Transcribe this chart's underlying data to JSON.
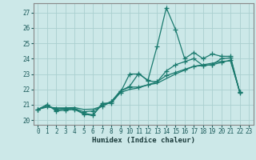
{
  "title": "",
  "xlabel": "Humidex (Indice chaleur)",
  "xlim": [
    -0.5,
    23.5
  ],
  "ylim": [
    19.7,
    27.6
  ],
  "yticks": [
    20,
    21,
    22,
    23,
    24,
    25,
    26,
    27
  ],
  "xticks": [
    0,
    1,
    2,
    3,
    4,
    5,
    6,
    7,
    8,
    9,
    10,
    11,
    12,
    13,
    14,
    15,
    16,
    17,
    18,
    19,
    20,
    21,
    22,
    23
  ],
  "bg_color": "#cce8e8",
  "grid_color": "#aad0d0",
  "line_color": "#1a7a6e",
  "lines": [
    [
      20.7,
      21.0,
      20.6,
      20.65,
      20.7,
      20.4,
      20.3,
      21.1,
      21.1,
      21.8,
      23.0,
      23.0,
      22.6,
      24.8,
      27.3,
      25.9,
      24.0,
      24.4,
      24.0,
      24.3,
      24.15,
      24.15,
      21.8
    ],
    [
      20.7,
      21.0,
      20.65,
      20.75,
      20.72,
      20.45,
      20.35,
      21.0,
      21.2,
      21.9,
      22.2,
      23.05,
      22.55,
      22.5,
      23.2,
      23.6,
      23.8,
      24.0,
      23.55,
      23.6,
      24.0,
      24.05,
      21.85
    ],
    [
      20.7,
      20.9,
      20.75,
      20.75,
      20.75,
      20.55,
      20.6,
      20.9,
      21.2,
      21.9,
      22.15,
      22.15,
      22.3,
      22.5,
      22.9,
      23.1,
      23.3,
      23.5,
      23.55,
      23.6,
      23.75,
      23.9,
      21.85
    ],
    [
      20.7,
      20.85,
      20.8,
      20.8,
      20.82,
      20.7,
      20.72,
      20.9,
      21.2,
      21.8,
      22.0,
      22.1,
      22.3,
      22.4,
      22.7,
      23.0,
      23.25,
      23.5,
      23.6,
      23.7,
      23.82,
      23.85,
      21.85
    ]
  ]
}
